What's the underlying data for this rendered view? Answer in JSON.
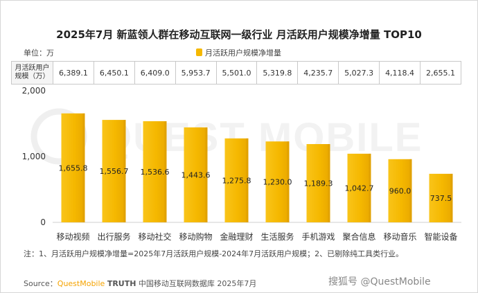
{
  "title": "2025年7月 新蓝领人群在移动互联网一级行业 月活跃用户规模净增量 TOP10",
  "unit_label": "单位：万",
  "legend": {
    "label": "月活跃用户规模净增量",
    "color": "#F5B800"
  },
  "table": {
    "row_label": "月活跃用户规模（万）",
    "values": [
      "6,389.1",
      "6,450.1",
      "6,409.0",
      "5,953.7",
      "5,501.0",
      "5,319.8",
      "4,235.7",
      "5,027.3",
      "4,118.4",
      "2,655.1"
    ]
  },
  "y_ticks": [
    "2,000",
    "1,000",
    "0"
  ],
  "chart_data": {
    "type": "bar",
    "categories": [
      "移动视频",
      "出行服务",
      "移动社交",
      "移动购物",
      "金融理财",
      "生活服务",
      "手机游戏",
      "聚合信息",
      "移动音乐",
      "智能设备"
    ],
    "series": [
      {
        "name": "月活跃用户规模净增量",
        "values": [
          1655.8,
          1556.7,
          1536.6,
          1443.6,
          1275.8,
          1230.0,
          1189.3,
          1042.7,
          960.0,
          737.5
        ],
        "labels": [
          "1,655.8",
          "1,556.7",
          "1,536.6",
          "1,443.6",
          "1,275.8",
          "1,230.0",
          "1,189.3",
          "1,042.7",
          "960.0",
          "737.5"
        ]
      }
    ],
    "ylim": [
      0,
      2000
    ],
    "grid": false,
    "legend_position": "top-center",
    "title": "2025年7月 新蓝领人群在移动互联网一级行业 月活跃用户规模净增量 TOP10",
    "xlabel": "",
    "ylabel": ""
  },
  "footnote": "注：1、月活跃用户规模净增量=2025年7月活跃用户规模-2024年7月活跃用户规模；2、已剔除纯工具类行业。",
  "source": {
    "prefix": "Source：",
    "brand": "QuestMobile",
    "truth": "TRUTH",
    "rest": " 中国移动互联网数据库 2025年7月"
  },
  "background_watermark": "QUEST MOBILE",
  "corner_watermark": "搜狐号 @QuestMobile"
}
